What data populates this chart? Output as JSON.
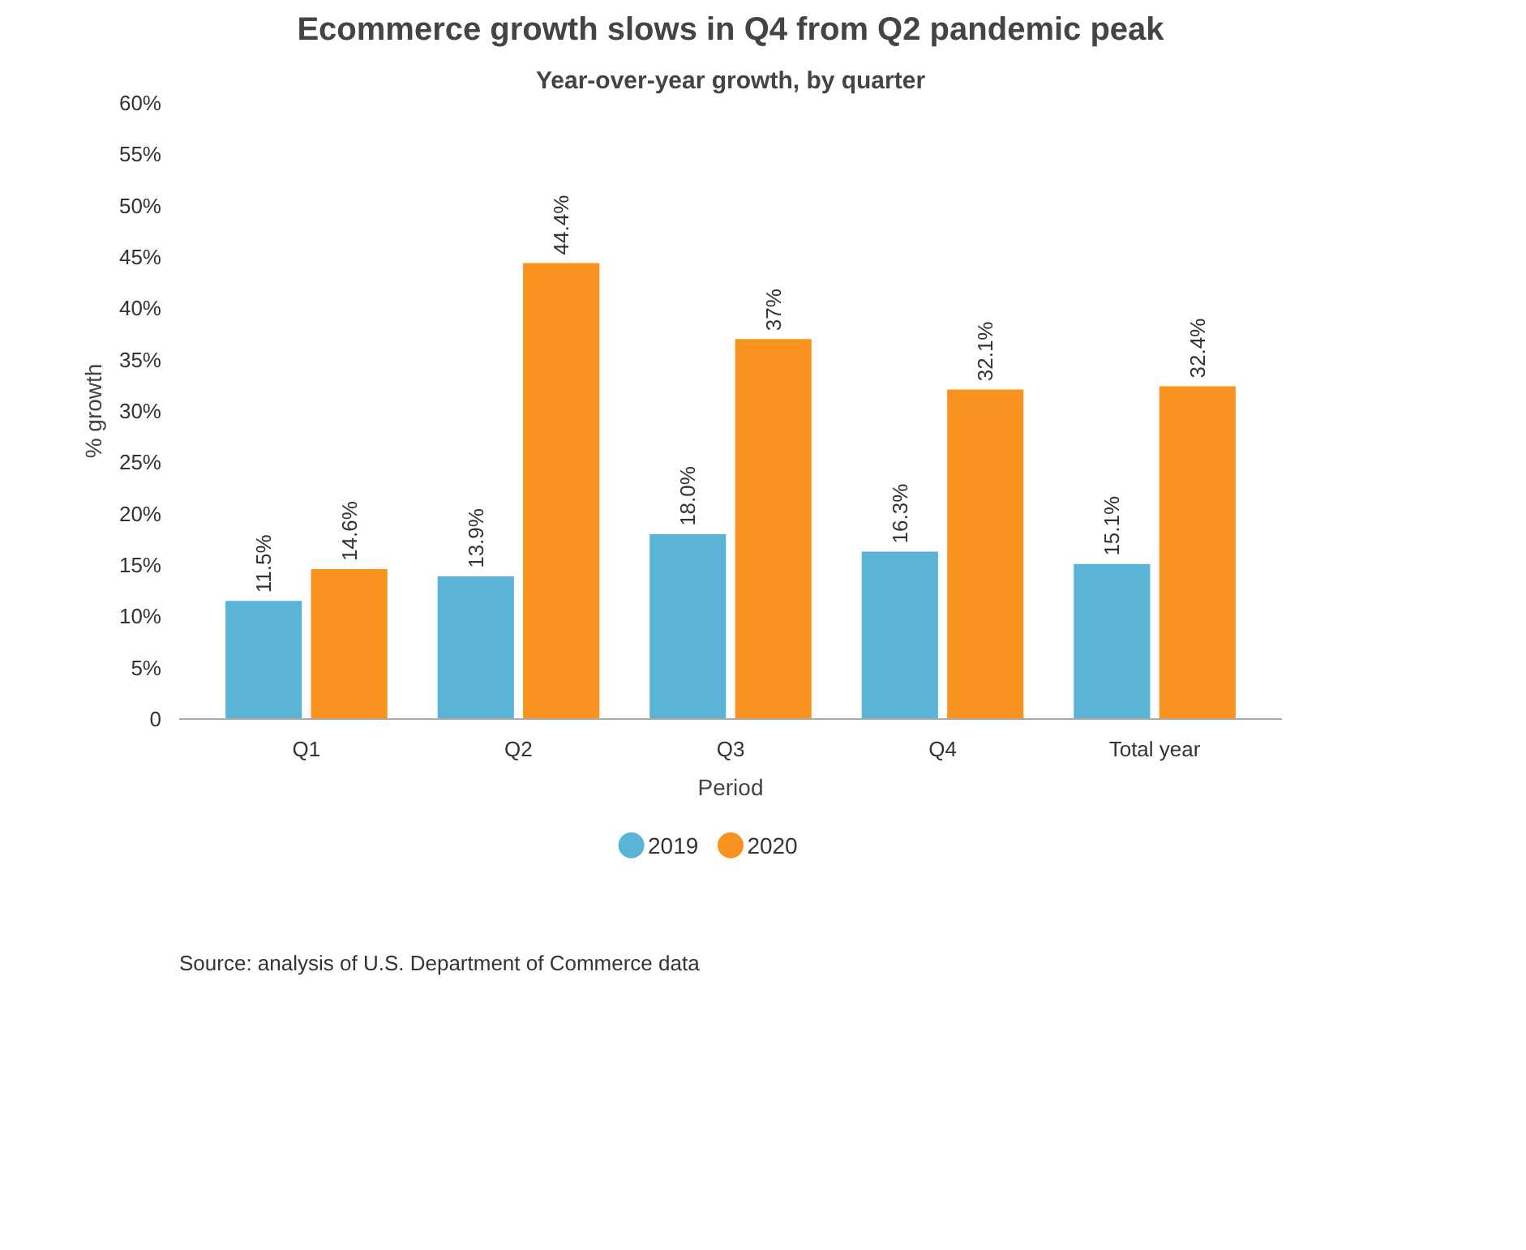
{
  "chart_data": {
    "type": "bar",
    "title": "Ecommerce growth slows in Q4 from Q2 pandemic peak",
    "subtitle": "Year-over-year growth, by quarter",
    "xlabel": "Period",
    "ylabel": "% growth",
    "categories": [
      "Q1",
      "Q2",
      "Q3",
      "Q4",
      "Total year"
    ],
    "series": [
      {
        "name": "2019",
        "color": "#5ab4d6",
        "values": [
          11.5,
          13.9,
          18.0,
          16.3,
          15.1
        ],
        "value_labels": [
          "11.5%",
          "13.9%",
          "18.0%",
          "16.3%",
          "15.1%"
        ]
      },
      {
        "name": "2020",
        "color": "#f7931e",
        "values": [
          14.6,
          44.4,
          37,
          32.1,
          32.4
        ],
        "value_labels": [
          "14.6%",
          "44.4%",
          "37%",
          "32.1%",
          "32.4%"
        ]
      }
    ],
    "ylim": [
      0,
      60
    ],
    "yticks": [
      {
        "value": 0,
        "label": "0"
      },
      {
        "value": 5,
        "label": "5%"
      },
      {
        "value": 10,
        "label": "10%"
      },
      {
        "value": 15,
        "label": "15%"
      },
      {
        "value": 20,
        "label": "20%"
      },
      {
        "value": 25,
        "label": "25%"
      },
      {
        "value": 30,
        "label": "30%"
      },
      {
        "value": 35,
        "label": "35%"
      },
      {
        "value": 40,
        "label": "40%"
      },
      {
        "value": 45,
        "label": "45%"
      },
      {
        "value": 50,
        "label": "50%"
      },
      {
        "value": 55,
        "label": "55%"
      },
      {
        "value": 60,
        "label": "60%"
      }
    ],
    "grid": false,
    "legend": "bottom",
    "annotations": [
      "Source: analysis of U.S. Department of Commerce data"
    ]
  }
}
